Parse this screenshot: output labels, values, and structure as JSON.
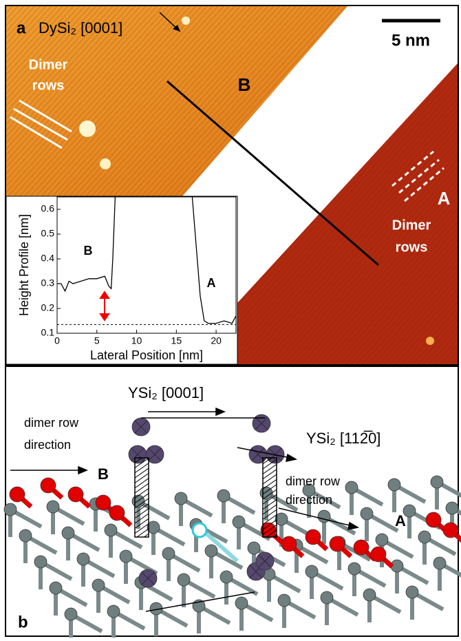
{
  "panel_a": {
    "label": "a",
    "direction": "DySi₂ [0001]",
    "scale_bar": "5 nm",
    "region_b": "B",
    "region_a": "A",
    "dimer_rows_left": [
      "Dimer",
      "rows"
    ],
    "dimer_rows_right": [
      "Dimer",
      "rows"
    ]
  },
  "inset": {
    "type": "line",
    "x_label": "Lateral Position [nm]",
    "y_label": "Height Profile [nm]",
    "label_b": "B",
    "label_a": "A",
    "xlim": [
      0,
      22.5
    ],
    "ylim": [
      0.1,
      0.65
    ],
    "xticks": [
      0,
      5,
      10,
      15,
      20
    ],
    "yticks": [
      0.1,
      0.2,
      0.3,
      0.4,
      0.5,
      0.6
    ],
    "reference_level": 0.135,
    "x": [
      0,
      0.5,
      1,
      1.5,
      2,
      3,
      4,
      5,
      6,
      6.5,
      6.8,
      7,
      7.3,
      10,
      17,
      17.5,
      18,
      18.5,
      19,
      20,
      21,
      22,
      22.5
    ],
    "y": [
      0.3,
      0.3,
      0.27,
      0.31,
      0.3,
      0.31,
      0.32,
      0.32,
      0.33,
      0.29,
      0.28,
      0.4,
      0.65,
      null,
      0.65,
      0.45,
      0.25,
      0.15,
      0.14,
      0.14,
      0.15,
      0.14,
      0.17
    ]
  },
  "panel_b": {
    "label": "b",
    "direction_top": "YSi₂ [0001]",
    "direction_right": "YSi₂ [112̅0]",
    "dimer_dir_left": [
      "dimer row",
      "direction"
    ],
    "dimer_dir_right": [
      "dimer row",
      "direction"
    ],
    "region_b": "B",
    "region_a": "A"
  }
}
